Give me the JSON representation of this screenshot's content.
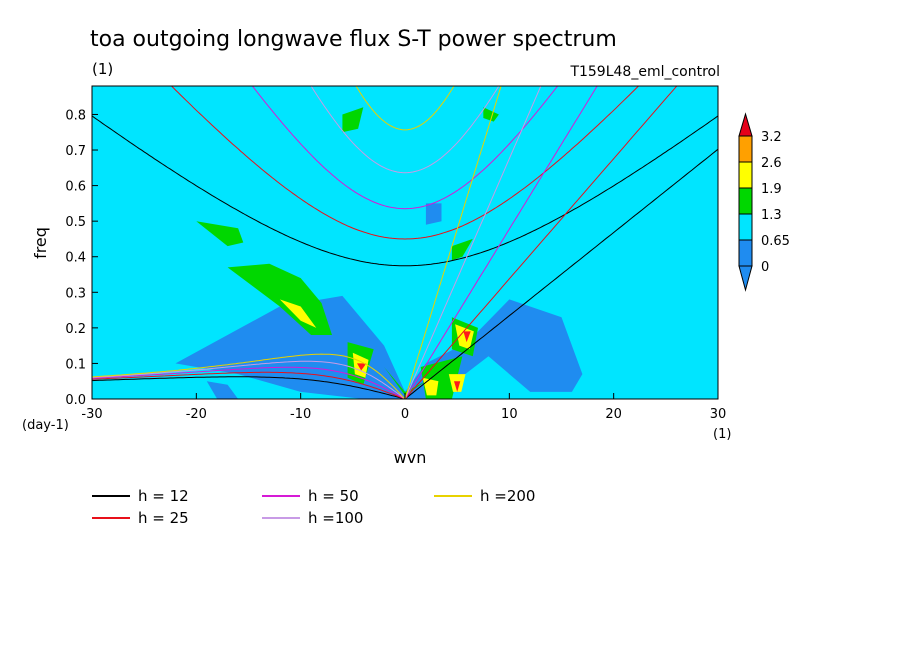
{
  "chart_data": {
    "type": "heatmap",
    "title": "toa outgoing longwave flux S-T power spectrum",
    "subtitle_left": "(1)",
    "subtitle_right": "T159L48_eml_control",
    "xlabel": "wvn",
    "ylabel": "freq",
    "x_unit_label": "(1)",
    "y_unit_label": "(day-1)",
    "xlim": [
      -30,
      30
    ],
    "ylim": [
      0,
      0.88
    ],
    "x_ticks": [
      -30,
      -20,
      -10,
      0,
      10,
      20,
      30
    ],
    "x_tick_labels": [
      "-30",
      "-20",
      "-10",
      "0",
      "10",
      "20",
      "30"
    ],
    "y_ticks": [
      0,
      0.1,
      0.2,
      0.3,
      0.4,
      0.5,
      0.6,
      0.7,
      0.8
    ],
    "y_tick_labels": [
      "0.0",
      "0.1",
      "0.2",
      "0.3",
      "0.4",
      "0.5",
      "0.6",
      "0.7",
      "0.8"
    ],
    "colorbar": {
      "levels": [
        "0",
        "0.65",
        "1.3",
        "1.9",
        "2.6",
        "3.2"
      ],
      "colors": [
        "#1f8cf0",
        "#00e5ff",
        "#00d700",
        "#ffff00",
        "#ffa000",
        "#ff1a1a"
      ],
      "under_color": "#1f8cf0",
      "over_color": "#e5001a"
    },
    "background_color": "#00e5ff",
    "shaded_regions": [
      {
        "level": "low",
        "x": [
          -22,
          -12,
          -6,
          -2,
          0,
          2,
          6,
          10,
          15,
          17,
          16,
          12,
          8,
          4,
          2,
          0,
          -4,
          -10,
          -16,
          -20
        ],
        "y": [
          0.1,
          0.26,
          0.29,
          0.15,
          0.02,
          0.1,
          0.16,
          0.28,
          0.23,
          0.07,
          0.02,
          0.02,
          0.12,
          0.03,
          0.0,
          0.0,
          0.0,
          0.02,
          0.07,
          0.09
        ]
      },
      {
        "level": "low",
        "x": [
          -19,
          -17,
          -16,
          -18
        ],
        "y": [
          0.05,
          0.04,
          0.0,
          0.0
        ]
      },
      {
        "level": "low",
        "x": [
          2,
          3.5,
          3.5,
          2
        ],
        "y": [
          0.55,
          0.55,
          0.5,
          0.49
        ]
      },
      {
        "level": "mid",
        "x": [
          -17,
          -13,
          -10,
          -8,
          -7,
          -9,
          -12
        ],
        "y": [
          0.37,
          0.38,
          0.34,
          0.27,
          0.18,
          0.18,
          0.26
        ]
      },
      {
        "level": "mid",
        "x": [
          -20,
          -16,
          -15.5,
          -17
        ],
        "y": [
          0.5,
          0.48,
          0.44,
          0.43
        ]
      },
      {
        "level": "mid",
        "x": [
          -5.5,
          -3,
          -4,
          -5.5
        ],
        "y": [
          0.16,
          0.14,
          0.04,
          0.06
        ]
      },
      {
        "level": "mid",
        "x": [
          -2,
          0,
          2,
          0
        ],
        "y": [
          0.09,
          0.02,
          0.05,
          0.01
        ]
      },
      {
        "level": "mid",
        "x": [
          1.5,
          5.5,
          4.5,
          2
        ],
        "y": [
          0.09,
          0.12,
          0.0,
          0.0
        ]
      },
      {
        "level": "mid",
        "x": [
          4.5,
          7,
          6.5,
          4.5
        ],
        "y": [
          0.23,
          0.2,
          0.12,
          0.14
        ]
      },
      {
        "level": "mid",
        "x": [
          4.5,
          6.5,
          5.5,
          4.5
        ],
        "y": [
          0.43,
          0.45,
          0.4,
          0.39
        ]
      },
      {
        "level": "mid",
        "x": [
          -6,
          -4,
          -4.5,
          -6
        ],
        "y": [
          0.8,
          0.82,
          0.76,
          0.75
        ]
      },
      {
        "level": "mid",
        "x": [
          7.5,
          9,
          8.5,
          7.5
        ],
        "y": [
          0.82,
          0.8,
          0.78,
          0.79
        ]
      },
      {
        "level": "high",
        "x": [
          -12,
          -10,
          -8.5,
          -10
        ],
        "y": [
          0.28,
          0.26,
          0.2,
          0.22
        ]
      },
      {
        "level": "high",
        "x": [
          -5,
          -3.5,
          -3.8,
          -4.8
        ],
        "y": [
          0.13,
          0.11,
          0.06,
          0.07
        ]
      },
      {
        "level": "high",
        "x": [
          4.8,
          6.6,
          6.2,
          5.2
        ],
        "y": [
          0.21,
          0.19,
          0.14,
          0.15
        ]
      },
      {
        "level": "high",
        "x": [
          4.2,
          5.8,
          5.4,
          4.6
        ],
        "y": [
          0.07,
          0.07,
          0.02,
          0.02
        ]
      },
      {
        "level": "high",
        "x": [
          1.7,
          3.2,
          3.0,
          2.1
        ],
        "y": [
          0.06,
          0.05,
          0.01,
          0.01
        ]
      },
      {
        "level": "peak",
        "x": [
          -4.6,
          -3.7,
          -4.2
        ],
        "y": [
          0.1,
          0.1,
          0.08
        ]
      },
      {
        "level": "peak",
        "x": [
          5.6,
          6.3,
          5.9
        ],
        "y": [
          0.19,
          0.19,
          0.16
        ]
      },
      {
        "level": "peak",
        "x": [
          4.7,
          5.3,
          5.0
        ],
        "y": [
          0.05,
          0.05,
          0.02
        ]
      }
    ],
    "dispersion_curves": {
      "equivalent_depths": [
        12,
        25,
        50,
        100,
        200
      ],
      "families": [
        "kelvin",
        "n=1 equatorial Rossby",
        "n=1 inertia-gravity"
      ]
    },
    "legend": {
      "placement": "bottom",
      "entries": [
        {
          "label": "h = 12",
          "color": "#000000"
        },
        {
          "label": "h = 25",
          "color": "#e8101a"
        },
        {
          "label": "h = 50",
          "color": "#d61ad6"
        },
        {
          "label": "h =100",
          "color": "#c89be6"
        },
        {
          "label": "h =200",
          "color": "#e8d200"
        }
      ]
    },
    "grid": false
  }
}
